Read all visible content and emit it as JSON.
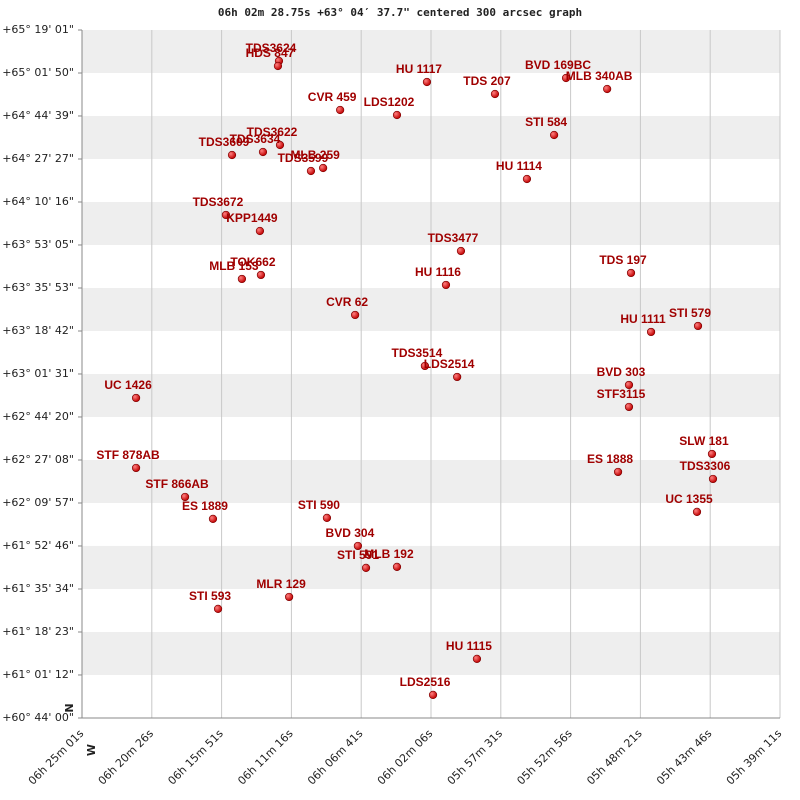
{
  "chart_data": {
    "type": "scatter",
    "title": "06h 02m 28.75s +63° 04′ 37.7\" centered 300 arcsec graph",
    "x_label": "W",
    "y_label": "N",
    "color": "#c00000",
    "grid": true,
    "bands": true,
    "xlim": [
      23101,
      20351
    ],
    "xticks": [
      {
        "value": 23101,
        "label": "06h 25m 01s"
      },
      {
        "value": 22826,
        "label": "06h 20m 26s"
      },
      {
        "value": 22551,
        "label": "06h 15m 51s"
      },
      {
        "value": 22276,
        "label": "06h 11m 16s"
      },
      {
        "value": 22001,
        "label": "06h 06m 41s"
      },
      {
        "value": 21726,
        "label": "06h 02m 06s"
      },
      {
        "value": 21451,
        "label": "05h 57m 31s"
      },
      {
        "value": 21176,
        "label": "05h 52m 56s"
      },
      {
        "value": 20901,
        "label": "05h 48m 21s"
      },
      {
        "value": 20626,
        "label": "05h 43m 46s"
      },
      {
        "value": 20351,
        "label": "05h 39m 11s"
      }
    ],
    "ylim": [
      218640,
      235141
    ],
    "yticks": [
      {
        "value": 235141,
        "label": "+65° 19' 01\""
      },
      {
        "value": 234110,
        "label": "+65° 01' 50\""
      },
      {
        "value": 233079,
        "label": "+64° 44' 39\""
      },
      {
        "value": 232047,
        "label": "+64° 27' 27\""
      },
      {
        "value": 231016,
        "label": "+64° 10' 16\""
      },
      {
        "value": 229985,
        "label": "+63° 53' 05\""
      },
      {
        "value": 228953,
        "label": "+63° 35' 53\""
      },
      {
        "value": 227922,
        "label": "+63° 18' 42\""
      },
      {
        "value": 226891,
        "label": "+63° 01' 31\""
      },
      {
        "value": 225860,
        "label": "+62° 44' 20\""
      },
      {
        "value": 224828,
        "label": "+62° 27' 08\""
      },
      {
        "value": 223797,
        "label": "+62° 09' 57\""
      },
      {
        "value": 222766,
        "label": "+61° 52' 46\""
      },
      {
        "value": 221734,
        "label": "+61° 35' 34\""
      },
      {
        "value": 220703,
        "label": "+61° 18' 23\""
      },
      {
        "value": 219672,
        "label": "+61° 01' 12\""
      },
      {
        "value": 218640,
        "label": "+60° 44' 00\""
      }
    ],
    "points": [
      {
        "label": "TDS3624",
        "x": 22325,
        "y": 234398
      },
      {
        "label": "HDS 847",
        "x": 22329,
        "y": 234278
      },
      {
        "label": "HU 1117",
        "x": 21742,
        "y": 233894
      },
      {
        "label": "TDS 207",
        "x": 21474,
        "y": 233606
      },
      {
        "label": "BVD 169BC",
        "x": 21194,
        "y": 233990
      },
      {
        "label": "MLB 340AB",
        "x": 21032,
        "y": 233726
      },
      {
        "label": "CVR 459",
        "x": 22084,
        "y": 233223
      },
      {
        "label": "LDS1202",
        "x": 21860,
        "y": 233103
      },
      {
        "label": "STI 584",
        "x": 21241,
        "y": 232623
      },
      {
        "label": "TDS3609",
        "x": 22510,
        "y": 232143
      },
      {
        "label": "TDS3622",
        "x": 22321,
        "y": 232383
      },
      {
        "label": "TDS3634",
        "x": 22388,
        "y": 232215
      },
      {
        "label": "MLB 259",
        "x": 22151,
        "y": 231832
      },
      {
        "label": "TDS3599",
        "x": 22199,
        "y": 231760
      },
      {
        "label": "HU 1114",
        "x": 21348,
        "y": 231568
      },
      {
        "label": "TDS3672",
        "x": 22534,
        "y": 230705
      },
      {
        "label": "KPP1449",
        "x": 22400,
        "y": 230321
      },
      {
        "label": "TDS3477",
        "x": 21608,
        "y": 229841
      },
      {
        "label": "TDS 197",
        "x": 20938,
        "y": 229314
      },
      {
        "label": "TOK662",
        "x": 22396,
        "y": 229266
      },
      {
        "label": "MLB 153",
        "x": 22471,
        "y": 229170
      },
      {
        "label": "HU 1116",
        "x": 21667,
        "y": 229026
      },
      {
        "label": "CVR  62",
        "x": 22025,
        "y": 228307
      },
      {
        "label": "STI 579",
        "x": 20674,
        "y": 228043
      },
      {
        "label": "HU 1111",
        "x": 20859,
        "y": 227899
      },
      {
        "label": "TDS3514",
        "x": 21750,
        "y": 227084
      },
      {
        "label": "LDS2514",
        "x": 21623,
        "y": 226820
      },
      {
        "label": "BVD 303",
        "x": 20946,
        "y": 226628
      },
      {
        "label": "STF3115",
        "x": 20946,
        "y": 226101
      },
      {
        "label": "UC 1426",
        "x": 22888,
        "y": 226316
      },
      {
        "label": "SLW 181",
        "x": 20619,
        "y": 224973
      },
      {
        "label": "ES 1888",
        "x": 20989,
        "y": 224542
      },
      {
        "label": "TDS3306",
        "x": 20615,
        "y": 224374
      },
      {
        "label": "STF 878AB",
        "x": 22888,
        "y": 224638
      },
      {
        "label": "STF 866AB",
        "x": 22695,
        "y": 223942
      },
      {
        "label": "UC 1355",
        "x": 20678,
        "y": 223583
      },
      {
        "label": "ES 1889",
        "x": 22585,
        "y": 223415
      },
      {
        "label": "STI 590",
        "x": 22136,
        "y": 223439
      },
      {
        "label": "BVD 304",
        "x": 22014,
        "y": 222767
      },
      {
        "label": "STI 591",
        "x": 21982,
        "y": 222240
      },
      {
        "label": "MLB 192",
        "x": 21860,
        "y": 222264
      },
      {
        "label": "MLR 129",
        "x": 22285,
        "y": 221544
      },
      {
        "label": "STI 593",
        "x": 22565,
        "y": 221257
      },
      {
        "label": "HU 1115",
        "x": 21545,
        "y": 220058
      },
      {
        "label": "LDS2516",
        "x": 21718,
        "y": 219194
      }
    ]
  }
}
